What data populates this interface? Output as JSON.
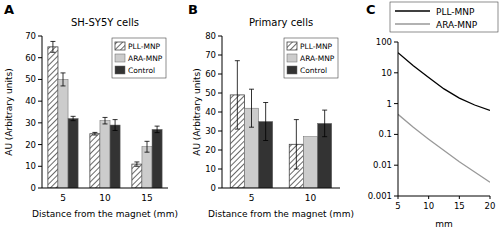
{
  "chart_data": [
    {
      "type": "bar",
      "annotations": [
        "A"
      ],
      "title": "SH-SY5Y cells",
      "y_label": "AU (Arbitrary units)",
      "x_label": "Distance from the magnet (mm)",
      "categories": [
        "5",
        "10",
        "15"
      ],
      "series": [
        {
          "name": "PLL-MNP",
          "color": "#444444",
          "values": [
            65,
            25,
            11
          ],
          "errors": [
            2.5,
            0.6,
            1
          ]
        },
        {
          "name": "ARA-MNP",
          "color": "#cccccc",
          "values": [
            50,
            31,
            19
          ],
          "errors": [
            3,
            1.5,
            2.5
          ]
        },
        {
          "name": "Control",
          "color": "#333333",
          "values": [
            32,
            29,
            27
          ],
          "errors": [
            1,
            2.5,
            1.5
          ]
        }
      ],
      "ylim": [
        0,
        70
      ],
      "yticks": [
        0,
        10,
        20,
        30,
        40,
        50,
        60,
        70
      ],
      "legend": "top-right"
    },
    {
      "type": "bar",
      "annotations": [
        "B"
      ],
      "title": "Primary cells",
      "y_label": "AU (Arbitrary units)",
      "x_label": "Distance from the magnet (mm)",
      "categories": [
        "5",
        "10"
      ],
      "series": [
        {
          "name": "PLL-MNP",
          "color": "#444444",
          "values": [
            49,
            23
          ],
          "errors": [
            18,
            13
          ]
        },
        {
          "name": "ARA-MNP",
          "color": "#cccccc",
          "values": [
            42,
            27
          ],
          "errors": [
            10,
            null
          ]
        },
        {
          "name": "Control",
          "color": "#333333",
          "values": [
            35,
            34
          ],
          "errors": [
            10,
            7
          ]
        }
      ],
      "ylim": [
        0,
        80
      ],
      "yticks": [
        0,
        10,
        20,
        30,
        40,
        50,
        60,
        70,
        80
      ],
      "legend": "top-right"
    },
    {
      "type": "line",
      "annotations": [
        "C"
      ],
      "x_label": "mm",
      "x": [
        5,
        7.5,
        10,
        12.5,
        15,
        17.5,
        20
      ],
      "series": [
        {
          "name": "PLL-MNP",
          "color": "#000000",
          "values": [
            45,
            17,
            7,
            3,
            1.5,
            0.9,
            0.6
          ]
        },
        {
          "name": "ARA-MNP",
          "color": "#999999",
          "values": [
            0.45,
            0.17,
            0.07,
            0.03,
            0.013,
            0.006,
            0.0028
          ]
        }
      ],
      "xlim": [
        5,
        20
      ],
      "xticks": [
        5,
        10,
        15,
        20
      ],
      "ylim": [
        0.001,
        100
      ],
      "yticks": [
        0.001,
        0.01,
        0.1,
        1,
        10,
        100
      ],
      "log": "y",
      "legend": "top-right"
    }
  ]
}
